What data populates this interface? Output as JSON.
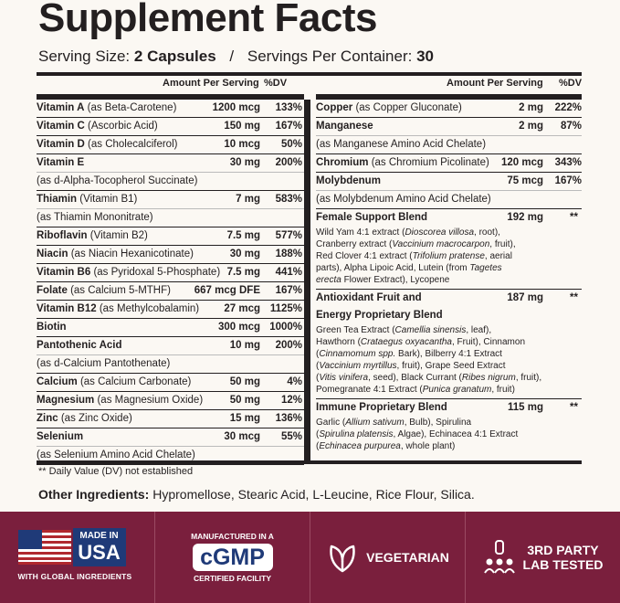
{
  "title": "Supplement Facts",
  "serving": {
    "size_label": "Serving Size:",
    "size_value": "2 Capsules",
    "sep": "/",
    "per_label": "Servings Per Container:",
    "per_value": "30"
  },
  "left": {
    "hdr_amount": "Amount Per Serving",
    "hdr_dv": "%DV",
    "rows": [
      {
        "name": "Vitamin A",
        "desc": "(as Beta-Carotene)",
        "amount": "1200 mcg",
        "dv": "133%"
      },
      {
        "name": "Vitamin C",
        "desc": "(Ascorbic Acid)",
        "amount": "150 mg",
        "dv": "167%"
      },
      {
        "name": "Vitamin D",
        "desc": "(as Cholecalciferol)",
        "amount": "10 mcg",
        "dv": "50%"
      },
      {
        "name": "Vitamin E",
        "desc": "",
        "sub": "(as d-Alpha-Tocopherol Succinate)",
        "amount": "30 mg",
        "dv": "200%"
      },
      {
        "name": "Thiamin",
        "desc": "(Vitamin B1)",
        "sub": "(as Thiamin Mononitrate)",
        "amount": "7 mg",
        "dv": "583%"
      },
      {
        "name": "Riboflavin",
        "desc": "(Vitamin B2)",
        "amount": "7.5 mg",
        "dv": "577%"
      },
      {
        "name": "Niacin",
        "desc": "(as Niacin Hexanicotinate)",
        "amount": "30 mg",
        "dv": "188%"
      },
      {
        "name": "Vitamin B6",
        "desc": "(as Pyridoxal 5-Phosphate)",
        "amount": "7.5 mg",
        "dv": "441%"
      },
      {
        "name": "Folate",
        "desc": "(as Calcium 5-MTHF)",
        "amount": "667 mcg DFE",
        "dv": "167%"
      },
      {
        "name": "Vitamin B12",
        "desc": "(as Methylcobalamin)",
        "amount": "27 mcg",
        "dv": "1125%"
      },
      {
        "name": "Biotin",
        "desc": "",
        "amount": "300 mcg",
        "dv": "1000%"
      },
      {
        "name": "Pantothenic Acid",
        "desc": "",
        "sub": "(as d-Calcium Pantothenate)",
        "amount": "10 mg",
        "dv": "200%"
      },
      {
        "name": "Calcium",
        "desc": "(as Calcium Carbonate)",
        "amount": "50 mg",
        "dv": "4%"
      },
      {
        "name": "Magnesium",
        "desc": "(as Magnesium Oxide)",
        "amount": "50 mg",
        "dv": "12%"
      },
      {
        "name": "Zinc",
        "desc": "(as Zinc Oxide)",
        "amount": "15 mg",
        "dv": "136%"
      },
      {
        "name": "Selenium",
        "desc": "",
        "sub": "(as Selenium Amino Acid Chelate)",
        "amount": "30 mcg",
        "dv": "55%"
      }
    ]
  },
  "right": {
    "hdr_amount": "Amount Per Serving",
    "hdr_dv": "%DV",
    "rows": [
      {
        "name": "Copper",
        "desc": "(as Copper Gluconate)",
        "amount": "2 mg",
        "dv": "222%"
      },
      {
        "name": "Manganese",
        "desc": "",
        "sub": "(as Manganese Amino Acid Chelate)",
        "amount": "2 mg",
        "dv": "87%"
      },
      {
        "name": "Chromium",
        "desc": "(as Chromium Picolinate)",
        "amount": "120 mcg",
        "dv": "343%"
      },
      {
        "name": "Molybdenum",
        "desc": "",
        "sub": "(as Molybdenum Amino Acid Chelate)",
        "amount": "75 mcg",
        "dv": "167%"
      }
    ],
    "blends": [
      {
        "name": "Female Support Blend",
        "name2": "",
        "amount": "192 mg",
        "dv": "**",
        "lines": [
          "Wild Yam 4:1 extract (<i>Dioscorea villosa</i>, root),",
          "Cranberry extract (<i>Vaccinium macrocarpon</i>, fruit),",
          "Red Clover 4:1 extract (<i>Trifolium pratense</i>, aerial",
          "parts), Alpha Lipoic Acid, Lutein (from <i>Tagetes</i>",
          "<i>erecta</i> Flower Extract), Lycopene"
        ]
      },
      {
        "name": "Antioxidant Fruit and",
        "name2": "Energy Proprietary Blend",
        "amount": "187 mg",
        "dv": "**",
        "lines": [
          "Green Tea Extract (<i>Camellia sinensis</i>, leaf),",
          "Hawthorn (<i>Crataegus oxyacantha</i>, Fruit), Cinnamon",
          "(<i>Cinnamomum spp.</i> Bark), Bilberry 4:1 Extract",
          "(<i>Vaccinium myrtillus</i>, fruit), Grape Seed Extract",
          "(<i>Vitis vinifera</i>, seed), Black Currant (<i>Ribes nigrum</i>, fruit),",
          "Pomegranate 4:1 Extract (<i>Punica granatum</i>, fruit)"
        ]
      },
      {
        "name": "Immune Proprietary Blend",
        "name2": "",
        "amount": "115 mg",
        "dv": "**",
        "lines": [
          "Garlic (<i>Allium sativum</i>, Bulb), Spirulina",
          "(<i>Spirulina platensis</i>, Algae), Echinacea 4:1 Extract",
          "(<i>Echinacea purpurea</i>, whole plant)"
        ]
      }
    ]
  },
  "footnote": "** Daily Value (DV) not established",
  "other": {
    "label": "Other Ingredients:",
    "text": "Hypromellose, Stearic Acid, L-Leucine, Rice Flour, Silica."
  },
  "badges": {
    "usa": {
      "made": "MADE IN",
      "usa": "USA",
      "sub": "WITH GLOBAL INGREDIENTS"
    },
    "cgmp": {
      "top": "MANUFACTURED IN A",
      "mid": "cGMP",
      "bottom": "CERTIFIED FACILITY"
    },
    "veg": {
      "label": "VEGETARIAN"
    },
    "lab": {
      "line1": "3RD PARTY",
      "line2": "LAB TESTED"
    }
  },
  "colors": {
    "band": "#7a1f3d",
    "flag_blue": "#1f3a78",
    "flag_red": "#b0282e"
  }
}
